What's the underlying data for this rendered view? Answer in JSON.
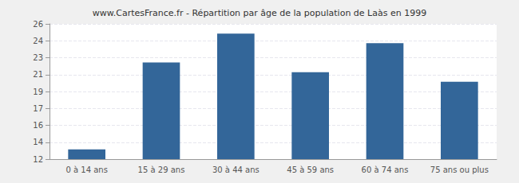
{
  "chart_data": {
    "type": "bar",
    "title": "www.CartesFrance.fr - Répartition par âge de la population de Laàs en 1999",
    "categories": [
      "0 à 14 ans",
      "15 à 29 ans",
      "30 à 44 ans",
      "45 à 59 ans",
      "60 à 74 ans",
      "75 ans ou plus"
    ],
    "values": [
      13,
      22,
      25,
      21,
      24,
      20
    ],
    "color": "#336699",
    "ylim": [
      12,
      26
    ],
    "yticks": [
      12,
      {
        "value": 13.75,
        "label": "14"
      },
      {
        "value": 15.5,
        "label": "16"
      },
      {
        "value": 17.25,
        "label": "17"
      },
      19,
      {
        "value": 20.75,
        "label": "21"
      },
      {
        "value": 22.5,
        "label": "23"
      },
      {
        "value": 24.25,
        "label": "24"
      },
      26
    ],
    "grid": true
  }
}
